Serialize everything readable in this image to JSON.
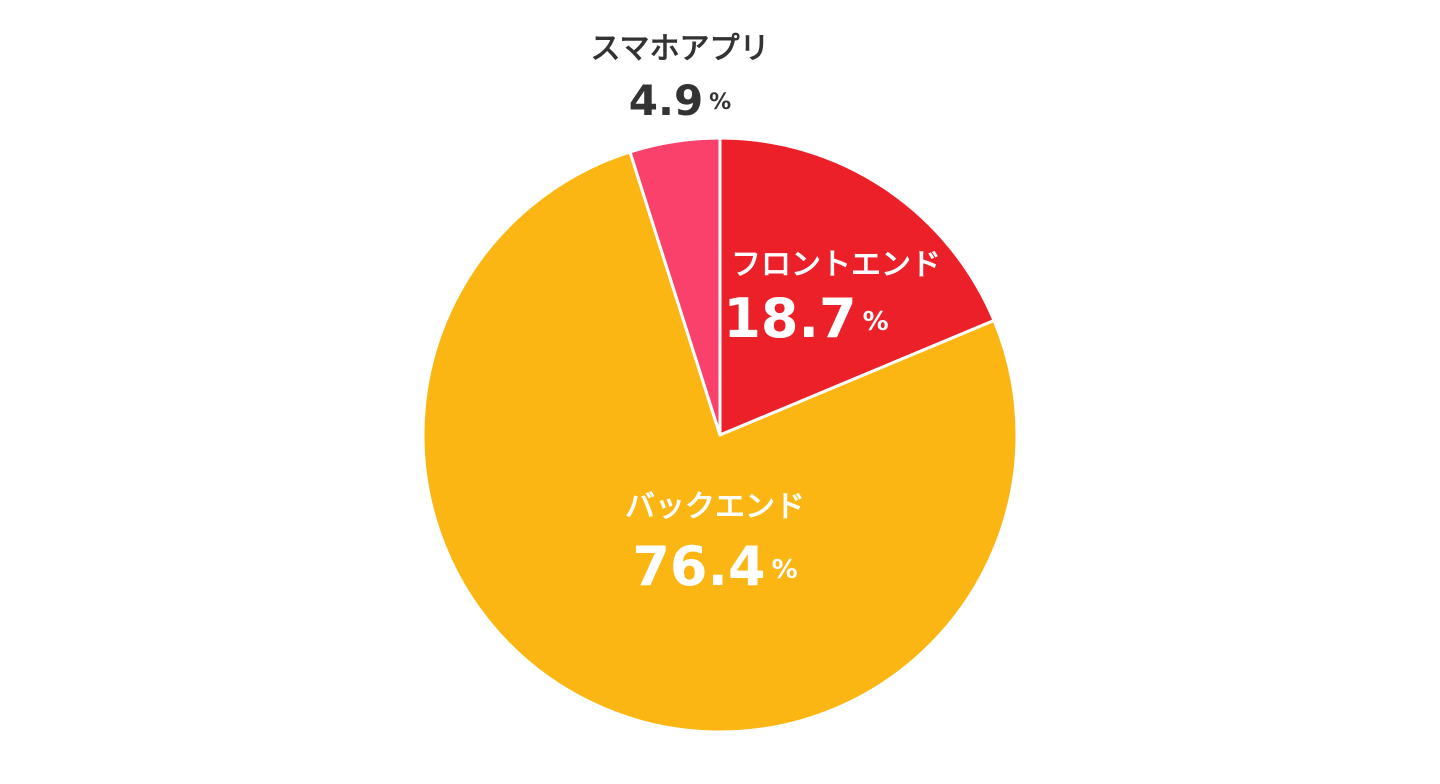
{
  "chart_data": {
    "type": "pie",
    "categories": [
      "フロントエンド",
      "バックエンド",
      "スマホアプリ"
    ],
    "values": [
      18.7,
      76.4,
      4.9
    ],
    "unit": "%",
    "colors": [
      "#ec2028",
      "#fbb614",
      "#f9416b"
    ]
  }
}
